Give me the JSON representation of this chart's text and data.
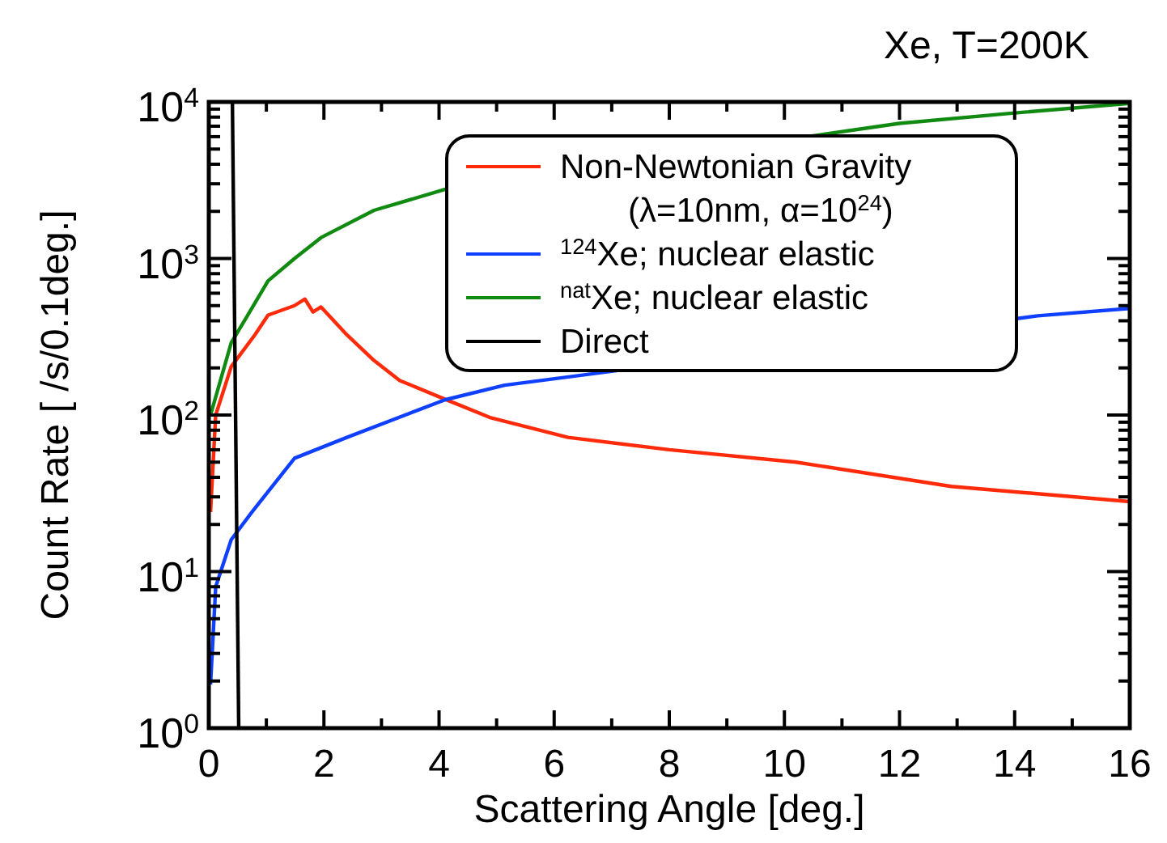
{
  "chart_data": {
    "type": "line",
    "title": "Xe, T=200K",
    "xlabel": "Scattering Angle [deg.]",
    "ylabel": "Count Rate [ /s/0.1deg.]",
    "log": "y",
    "grid": false,
    "legend": "top right",
    "marker": "none",
    "line_style": "solid",
    "xlim": [
      0,
      16
    ],
    "ylim": [
      1,
      10000
    ],
    "xticks": [
      0,
      {
        "value": 1,
        "label": null
      },
      2,
      {
        "value": 3,
        "label": null
      },
      4,
      {
        "value": 5,
        "label": null
      },
      6,
      {
        "value": 7,
        "label": null
      },
      8,
      {
        "value": 9,
        "label": null
      },
      10,
      {
        "value": 11,
        "label": null
      },
      12,
      {
        "value": 13,
        "label": null
      },
      14,
      {
        "value": 15,
        "label": null
      },
      16
    ],
    "yticks": [
      {
        "value": 1,
        "label": "10$^{0}$"
      },
      {
        "value": 2,
        "label": null
      },
      {
        "value": 3,
        "label": null
      },
      {
        "value": 4,
        "label": null
      },
      {
        "value": 5,
        "label": null
      },
      {
        "value": 6,
        "label": null
      },
      {
        "value": 7,
        "label": null
      },
      {
        "value": 8,
        "label": null
      },
      {
        "value": 9,
        "label": null
      },
      {
        "value": 10,
        "label": "10$^{1}$"
      },
      {
        "value": 20,
        "label": null
      },
      {
        "value": 30,
        "label": null
      },
      {
        "value": 40,
        "label": null
      },
      {
        "value": 50,
        "label": null
      },
      {
        "value": 60,
        "label": null
      },
      {
        "value": 70,
        "label": null
      },
      {
        "value": 80,
        "label": null
      },
      {
        "value": 90,
        "label": null
      },
      {
        "value": 100,
        "label": "10$^{2}$"
      },
      {
        "value": 200,
        "label": null
      },
      {
        "value": 300,
        "label": null
      },
      {
        "value": 400,
        "label": null
      },
      {
        "value": 500,
        "label": null
      },
      {
        "value": 600,
        "label": null
      },
      {
        "value": 700,
        "label": null
      },
      {
        "value": 800,
        "label": null
      },
      {
        "value": 900,
        "label": null
      },
      {
        "value": 1000,
        "label": "10$^{3}$"
      },
      {
        "value": 2000,
        "label": null
      },
      {
        "value": 3000,
        "label": null
      },
      {
        "value": 4000,
        "label": null
      },
      {
        "value": 5000,
        "label": null
      },
      {
        "value": 6000,
        "label": null
      },
      {
        "value": 7000,
        "label": null
      },
      {
        "value": 8000,
        "label": null
      },
      {
        "value": 9000,
        "label": null
      },
      {
        "value": 10000,
        "label": "10$^{4}$"
      }
    ],
    "series": [
      {
        "name": "Non-Newtonian Gravity\n(λ=10nm, α=10$^{24}$)",
        "color": "#ff2a0a",
        "x": [
          0.03,
          0.12,
          0.39,
          0.8,
          1.03,
          1.49,
          1.67,
          1.81,
          1.95,
          2.4,
          2.87,
          3.32,
          4.04,
          4.9,
          6.24,
          8,
          10.2,
          12.9,
          16
        ],
        "values": [
          24,
          100,
          204,
          325,
          435,
          500,
          550,
          455,
          490,
          325,
          223,
          166,
          129,
          96,
          72,
          60,
          50,
          35,
          28
        ]
      },
      {
        "name": "$^{124}$Xe; nuclear elastic",
        "color": "#1040ff",
        "x": [
          0.03,
          0.12,
          0.39,
          0.75,
          1.49,
          2.4,
          4.1,
          5.14,
          14.4,
          16
        ],
        "values": [
          1.9,
          8,
          16,
          24,
          53,
          72,
          125,
          155,
          430,
          480
        ]
      },
      {
        "name": "$^{nat}$Xe; nuclear elastic",
        "color": "#108a10",
        "x": [
          0.03,
          0.39,
          0.67,
          1.03,
          1.49,
          1.95,
          2.87,
          4.1,
          12,
          14,
          16
        ],
        "values": [
          100,
          290,
          430,
          720,
          1000,
          1360,
          2030,
          2760,
          7300,
          8500,
          9800
        ]
      },
      {
        "name": "Direct",
        "color": "#000000",
        "x": [
          0.41,
          0.52
        ],
        "values": [
          10000,
          1
        ]
      }
    ]
  }
}
